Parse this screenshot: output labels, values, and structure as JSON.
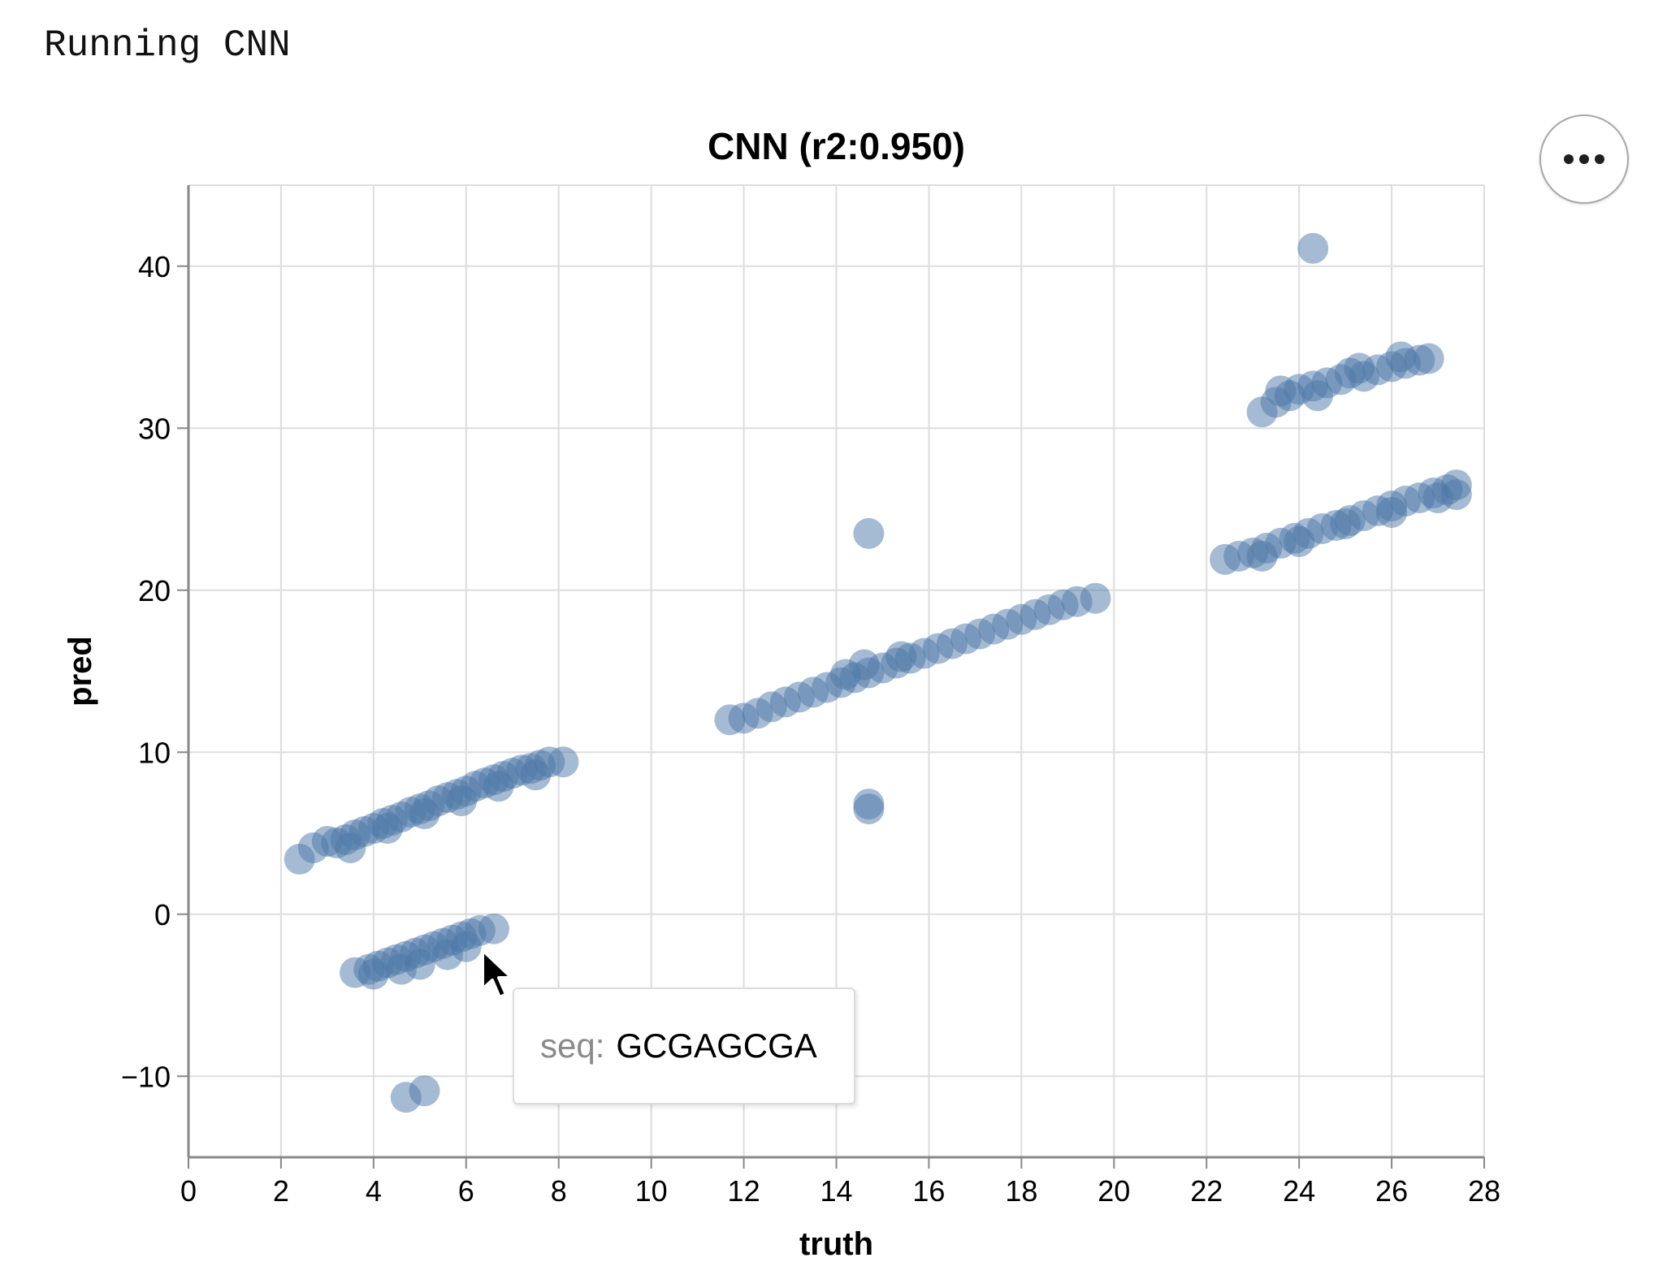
{
  "cell_output": "Running CNN",
  "actions_menu": {
    "icon": "more-horizontal-icon"
  },
  "tooltip": {
    "key": "seq:",
    "value": "GCGAGCGA"
  },
  "colors": {
    "point": "#4c78a8",
    "grid": "#dddddd",
    "axis": "#888888",
    "text": "#000000"
  },
  "chart_data": {
    "type": "scatter",
    "title": "CNN (r2:0.950)",
    "xlabel": "truth",
    "ylabel": "pred",
    "xlim": [
      0,
      28
    ],
    "ylim": [
      -15,
      45
    ],
    "xticks": [
      0,
      2,
      4,
      6,
      8,
      10,
      12,
      14,
      16,
      18,
      20,
      22,
      24,
      26,
      28
    ],
    "yticks": [
      -10,
      0,
      10,
      20,
      30,
      40
    ],
    "xtick_labels": [
      "0",
      "2",
      "4",
      "6",
      "8",
      "10",
      "12",
      "14",
      "16",
      "18",
      "20",
      "22",
      "24",
      "26",
      "28"
    ],
    "ytick_labels": [
      "−10",
      "0",
      "10",
      "20",
      "30",
      "40"
    ],
    "grid": true,
    "point_opacity": 0.5,
    "series": [
      {
        "points": [
          [
            2.4,
            3.4
          ],
          [
            2.7,
            4.1
          ],
          [
            3.0,
            4.5
          ],
          [
            3.2,
            4.4
          ],
          [
            3.4,
            4.6
          ],
          [
            3.6,
            4.9
          ],
          [
            3.8,
            5.1
          ],
          [
            4.0,
            5.3
          ],
          [
            4.2,
            5.6
          ],
          [
            4.4,
            5.8
          ],
          [
            4.6,
            6.0
          ],
          [
            4.8,
            6.3
          ],
          [
            5.0,
            6.5
          ],
          [
            5.2,
            6.7
          ],
          [
            5.4,
            7.0
          ],
          [
            5.6,
            7.2
          ],
          [
            5.8,
            7.4
          ],
          [
            6.0,
            7.6
          ],
          [
            6.2,
            7.9
          ],
          [
            6.4,
            8.1
          ],
          [
            6.6,
            8.3
          ],
          [
            6.8,
            8.5
          ],
          [
            7.0,
            8.7
          ],
          [
            7.2,
            8.9
          ],
          [
            7.4,
            9.0
          ],
          [
            7.6,
            9.2
          ],
          [
            7.8,
            9.4
          ],
          [
            8.1,
            9.4
          ],
          [
            3.5,
            4.1
          ],
          [
            4.3,
            5.3
          ],
          [
            5.1,
            6.2
          ],
          [
            5.9,
            7.0
          ],
          [
            6.7,
            7.9
          ],
          [
            7.5,
            8.6
          ],
          [
            3.6,
            -3.6
          ],
          [
            3.9,
            -3.4
          ],
          [
            4.1,
            -3.2
          ],
          [
            4.3,
            -3.0
          ],
          [
            4.5,
            -2.8
          ],
          [
            4.7,
            -2.6
          ],
          [
            4.9,
            -2.4
          ],
          [
            5.1,
            -2.2
          ],
          [
            5.3,
            -2.0
          ],
          [
            5.5,
            -1.8
          ],
          [
            5.7,
            -1.6
          ],
          [
            5.9,
            -1.4
          ],
          [
            6.1,
            -1.2
          ],
          [
            6.3,
            -1.0
          ],
          [
            6.6,
            -0.9
          ],
          [
            4.0,
            -3.7
          ],
          [
            4.6,
            -3.4
          ],
          [
            5.0,
            -3.1
          ],
          [
            5.6,
            -2.5
          ],
          [
            6.0,
            -2.0
          ],
          [
            4.7,
            -11.3
          ],
          [
            5.1,
            -10.9
          ],
          [
            11.7,
            12.0
          ],
          [
            12.0,
            12.1
          ],
          [
            12.3,
            12.4
          ],
          [
            12.6,
            12.8
          ],
          [
            12.9,
            13.1
          ],
          [
            13.2,
            13.4
          ],
          [
            13.5,
            13.7
          ],
          [
            13.8,
            14.0
          ],
          [
            14.1,
            14.3
          ],
          [
            14.4,
            14.6
          ],
          [
            14.7,
            14.9
          ],
          [
            15.0,
            15.2
          ],
          [
            15.3,
            15.5
          ],
          [
            15.6,
            15.8
          ],
          [
            15.9,
            16.1
          ],
          [
            16.2,
            16.4
          ],
          [
            16.5,
            16.7
          ],
          [
            16.8,
            17.0
          ],
          [
            17.1,
            17.3
          ],
          [
            17.4,
            17.6
          ],
          [
            17.7,
            17.9
          ],
          [
            18.0,
            18.2
          ],
          [
            18.3,
            18.5
          ],
          [
            18.6,
            18.8
          ],
          [
            18.9,
            19.1
          ],
          [
            19.2,
            19.3
          ],
          [
            19.6,
            19.5
          ],
          [
            14.2,
            14.8
          ],
          [
            14.6,
            15.4
          ],
          [
            15.4,
            15.9
          ],
          [
            14.7,
            23.5
          ],
          [
            14.7,
            6.8
          ],
          [
            14.7,
            6.5
          ],
          [
            22.4,
            21.9
          ],
          [
            22.7,
            22.1
          ],
          [
            23.0,
            22.3
          ],
          [
            23.3,
            22.6
          ],
          [
            23.6,
            22.9
          ],
          [
            23.9,
            23.2
          ],
          [
            24.2,
            23.5
          ],
          [
            24.5,
            23.8
          ],
          [
            24.8,
            24.0
          ],
          [
            25.1,
            24.3
          ],
          [
            25.4,
            24.6
          ],
          [
            25.7,
            24.9
          ],
          [
            26.0,
            25.2
          ],
          [
            26.3,
            25.5
          ],
          [
            26.6,
            25.7
          ],
          [
            26.9,
            26.0
          ],
          [
            27.2,
            26.2
          ],
          [
            27.4,
            26.5
          ],
          [
            27.4,
            25.9
          ],
          [
            23.2,
            22.1
          ],
          [
            24.0,
            23.0
          ],
          [
            25.0,
            24.1
          ],
          [
            26.0,
            24.8
          ],
          [
            27.0,
            25.7
          ],
          [
            23.2,
            31.0
          ],
          [
            23.5,
            31.6
          ],
          [
            23.6,
            32.3
          ],
          [
            23.8,
            32.0
          ],
          [
            24.0,
            32.4
          ],
          [
            24.3,
            32.6
          ],
          [
            24.6,
            32.8
          ],
          [
            24.9,
            33.0
          ],
          [
            25.1,
            33.4
          ],
          [
            25.4,
            33.2
          ],
          [
            25.7,
            33.6
          ],
          [
            26.0,
            33.8
          ],
          [
            26.3,
            34.0
          ],
          [
            26.6,
            34.2
          ],
          [
            26.8,
            34.3
          ],
          [
            24.4,
            32.0
          ],
          [
            25.3,
            33.7
          ],
          [
            26.2,
            34.4
          ],
          [
            24.3,
            41.1
          ]
        ]
      }
    ]
  }
}
